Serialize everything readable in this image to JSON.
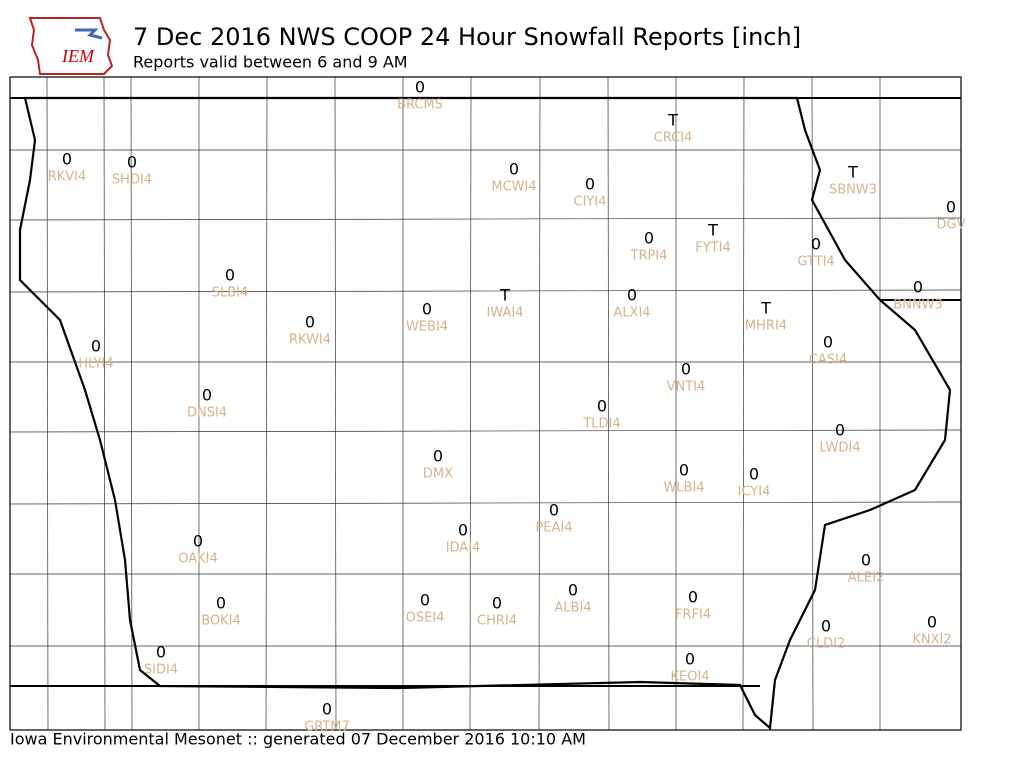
{
  "header": {
    "logo": "IEM",
    "title": "7 Dec 2016 NWS COOP 24 Hour Snowfall Reports [inch]",
    "subtitle": "Reports valid between 6 and 9 AM"
  },
  "stations": [
    {
      "id": "BRCMS",
      "value": 0
    },
    {
      "id": "CRCI4",
      "value": "T"
    },
    {
      "id": "RKVI4",
      "value": 0
    },
    {
      "id": "SHDI4",
      "value": 0
    },
    {
      "id": "MCWI4",
      "value": 0
    },
    {
      "id": "CIYI4",
      "value": 0
    },
    {
      "id": "SBNW3",
      "value": "T"
    },
    {
      "id": "DGV",
      "value": 0
    },
    {
      "id": "TRPI4",
      "value": 0
    },
    {
      "id": "FYTI4",
      "value": "T"
    },
    {
      "id": "GTTI4",
      "value": 0
    },
    {
      "id": "SLBI4",
      "value": 0
    },
    {
      "id": "BNNW3",
      "value": 0
    },
    {
      "id": "ALXI4",
      "value": 0
    },
    {
      "id": "IWAI4",
      "value": "T"
    },
    {
      "id": "WEBI4",
      "value": 0
    },
    {
      "id": "RKWI4",
      "value": 0
    },
    {
      "id": "MHRI4",
      "value": "T"
    },
    {
      "id": "HLYI4",
      "value": 0
    },
    {
      "id": "CASI4",
      "value": 0
    },
    {
      "id": "VNTI4",
      "value": 0
    },
    {
      "id": "DNSI4",
      "value": 0
    },
    {
      "id": "TLDI4",
      "value": 0
    },
    {
      "id": "LWDI4",
      "value": 0
    },
    {
      "id": "DMX",
      "value": 0
    },
    {
      "id": "WLBI4",
      "value": 0
    },
    {
      "id": "ICYI4",
      "value": 0
    },
    {
      "id": "PEAI4",
      "value": 0
    },
    {
      "id": "IDAI4",
      "value": 0
    },
    {
      "id": "OAKI4",
      "value": 0
    },
    {
      "id": "ALEI2",
      "value": 0
    },
    {
      "id": "BOKI4",
      "value": 0
    },
    {
      "id": "OSEI4",
      "value": 0
    },
    {
      "id": "CHRI4",
      "value": 0
    },
    {
      "id": "ALBI4",
      "value": 0
    },
    {
      "id": "FRFI4",
      "value": 0
    },
    {
      "id": "CLDI2",
      "value": 0
    },
    {
      "id": "KNXI2",
      "value": 0
    },
    {
      "id": "SIDI4",
      "value": 0
    },
    {
      "id": "KEOI4",
      "value": 0
    },
    {
      "id": "GRTM7",
      "value": 0
    }
  ],
  "footer": "Iowa Environmental Mesonet :: generated 07 December 2016 10:10 AM"
}
